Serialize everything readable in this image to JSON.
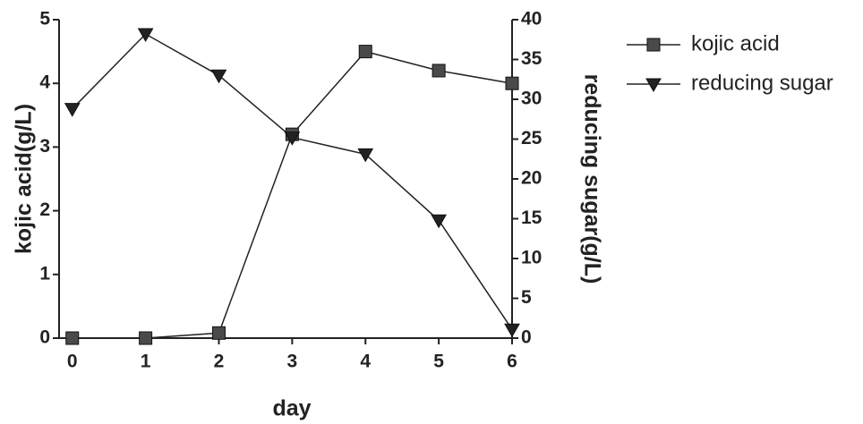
{
  "chart_data": {
    "type": "line",
    "x_label": "day",
    "y_label": "kojic acid(g/L)",
    "y2_label": "reducing sugar(g/L)",
    "x": [
      0,
      1,
      2,
      3,
      4,
      5,
      6
    ],
    "xlim": [
      -0.18,
      6
    ],
    "xticks": [
      0,
      1,
      2,
      3,
      4,
      5,
      6
    ],
    "ylim": [
      0,
      5
    ],
    "yticks": [
      0,
      1,
      2,
      3,
      4,
      5
    ],
    "y2lim": [
      0,
      40
    ],
    "y2ticks": [
      0,
      5,
      10,
      15,
      20,
      25,
      30,
      35,
      40
    ],
    "legend": "upper right",
    "series": [
      {
        "name": "kojic acid",
        "color": "#4a4a4a",
        "marker": "square",
        "values": [
          0,
          0,
          0.08,
          3.2,
          4.5,
          4.2,
          4.0
        ]
      },
      {
        "name": "reducing sugar",
        "color": "#222222",
        "marker": "triangle-down",
        "axis": "y2",
        "values": [
          28.8,
          38.2,
          33.0,
          25.2,
          23.1,
          14.8,
          1.1
        ]
      }
    ]
  }
}
